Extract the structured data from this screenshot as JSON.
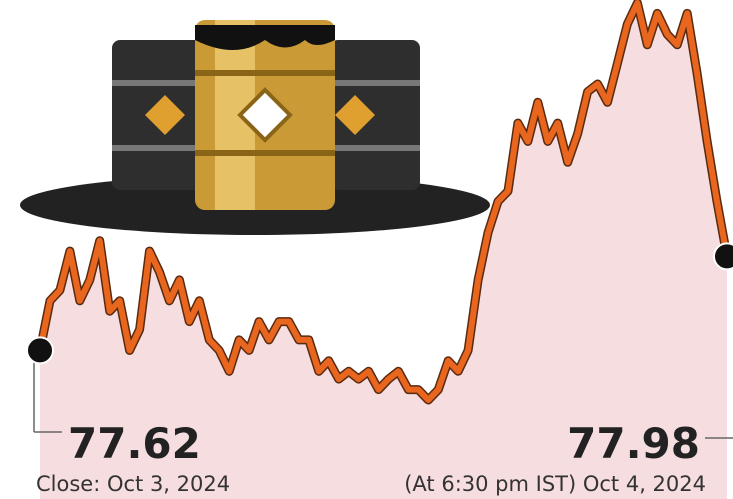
{
  "chart_data": {
    "type": "line",
    "values": [
      77.62,
      77.81,
      77.85,
      78.0,
      77.81,
      77.89,
      78.04,
      77.77,
      77.81,
      77.62,
      77.7,
      78.0,
      77.92,
      77.81,
      77.89,
      77.73,
      77.81,
      77.66,
      77.62,
      77.54,
      77.66,
      77.62,
      77.73,
      77.66,
      77.73,
      77.73,
      77.66,
      77.66,
      77.54,
      77.58,
      77.51,
      77.54,
      77.51,
      77.54,
      77.47,
      77.51,
      77.54,
      77.47,
      77.47,
      77.43,
      77.47,
      77.58,
      77.54,
      77.62,
      77.89,
      78.07,
      78.19,
      78.23,
      78.49,
      78.42,
      78.57,
      78.42,
      78.49,
      78.34,
      78.45,
      78.61,
      78.64,
      78.57,
      78.72,
      78.87,
      78.95,
      78.79,
      78.91,
      78.83,
      78.79,
      78.91,
      78.68,
      78.42,
      78.19,
      77.98
    ],
    "color": "#e8661e",
    "start_label": "Close: Oct 3, 2024",
    "end_label": "(At 6:30 pm IST) Oct 4, 2024"
  }
}
